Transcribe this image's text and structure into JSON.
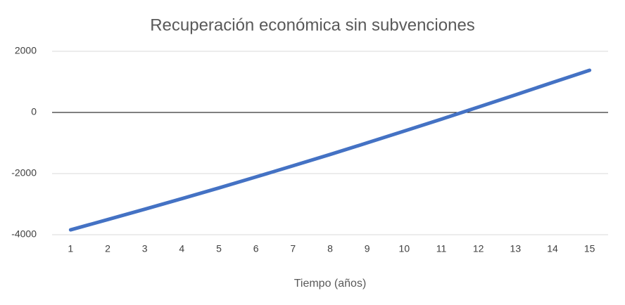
{
  "chart_data": {
    "type": "line",
    "title": "Recuperación económica sin subvenciones",
    "x_label": "Tiempo (años)",
    "categories": [
      "1",
      "2",
      "3",
      "4",
      "5",
      "6",
      "7",
      "8",
      "9",
      "10",
      "11",
      "12",
      "13",
      "14",
      "15"
    ],
    "values": [
      -3840,
      -3505,
      -3165,
      -2820,
      -2470,
      -2110,
      -1745,
      -1375,
      -995,
      -610,
      -220,
      175,
      575,
      980,
      1380
    ],
    "color": "#4472c4",
    "ylim": [
      -4000,
      2000
    ],
    "yticks": [
      -4000,
      -2000,
      0,
      2000
    ],
    "grid": true
  }
}
